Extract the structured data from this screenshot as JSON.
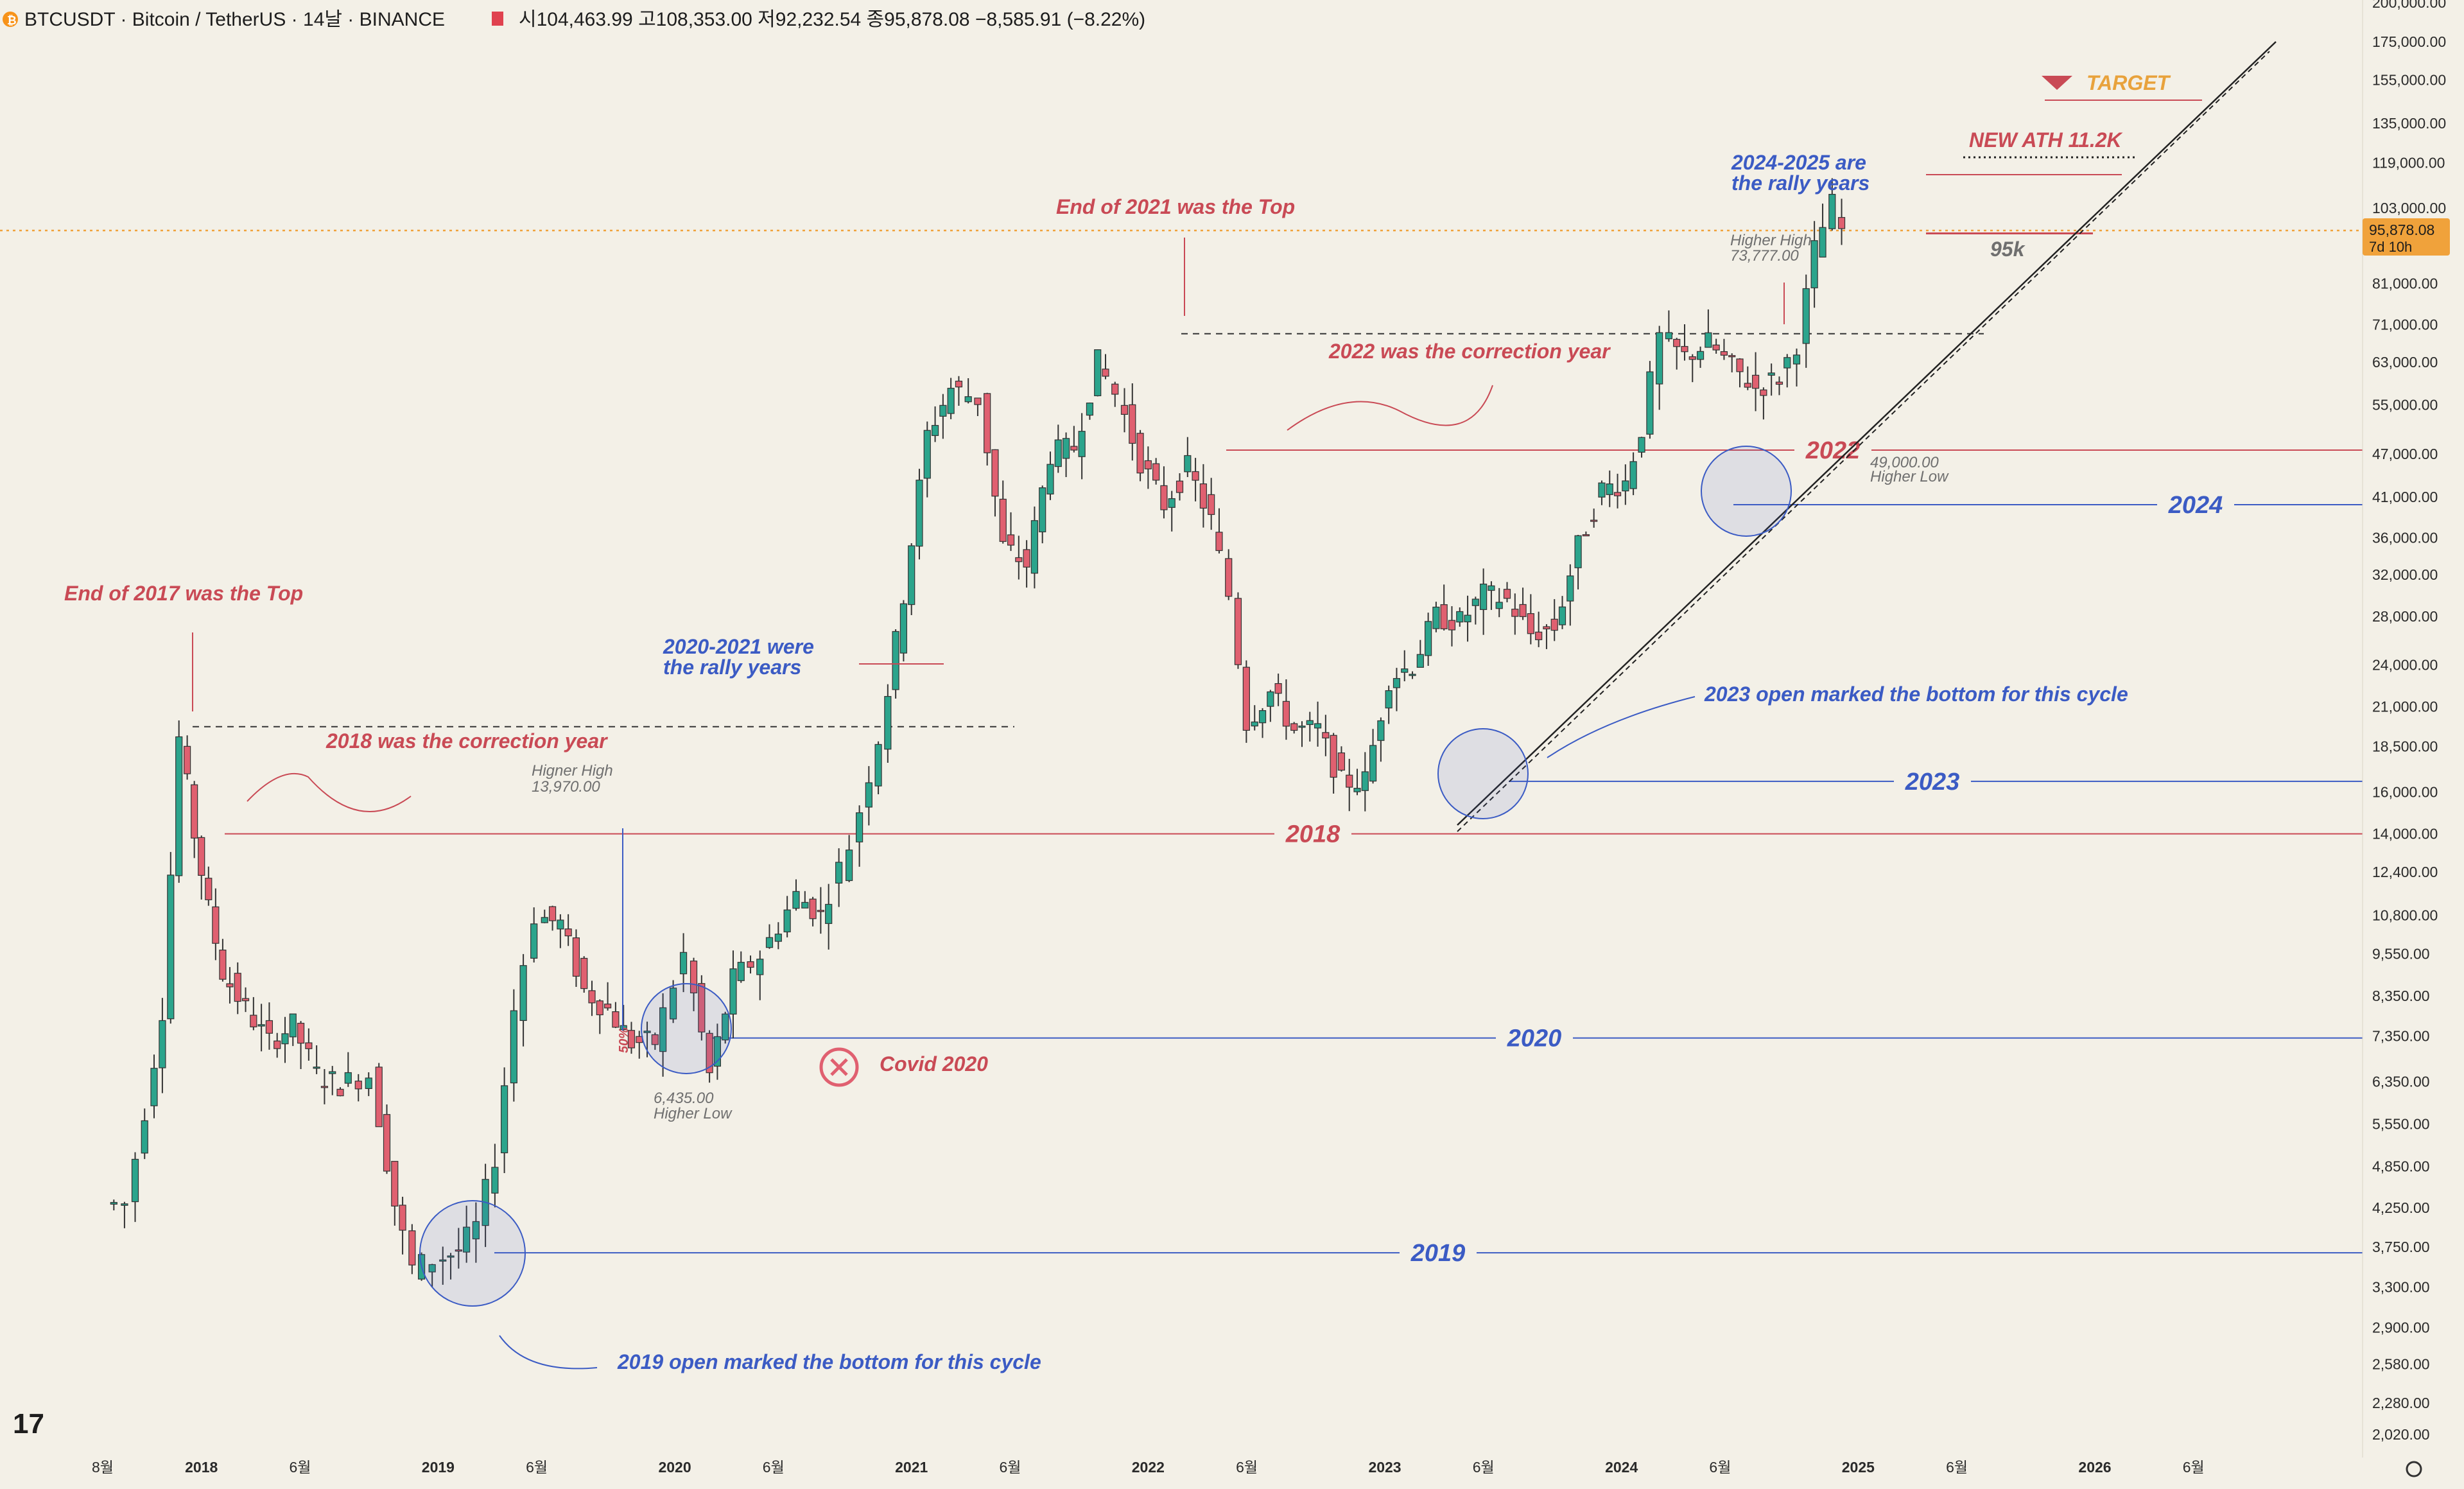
{
  "header": {
    "symbol": "BTCUSDT · Bitcoin / TetherUS · 14날 · BINANCE",
    "ohlc": "시104,463.99  고108,353.00  저92,232.54  종95,878.08  −8,585.91 (−8.22%)"
  },
  "price_tag": {
    "price": "95,878.08",
    "countdown": "7d 10h"
  },
  "colors": {
    "up": "#2ba48c",
    "down": "#e06070",
    "red_annotation": "#c94a55",
    "blue_annotation": "#3b5bc4",
    "price_line": "#f0a23b",
    "background": "#f3f0e7"
  },
  "chart_data": {
    "type": "candlestick",
    "yscale": "log",
    "ylim": [
      2020,
      200000
    ],
    "y_ticks": [
      200000,
      175000,
      155000,
      135000,
      119000,
      103000,
      81000,
      71000,
      63000,
      55000,
      47000,
      41000,
      36000,
      32000,
      28000,
      24000,
      21000,
      18500,
      16000,
      14000,
      12400,
      10800,
      9550,
      8350,
      7350,
      6350,
      5550,
      4850,
      4250,
      3750,
      3300,
      2900,
      2580,
      2280,
      2020
    ],
    "y_tick_labels": [
      "200,000.00",
      "175,000.00",
      "155,000.00",
      "135,000.00",
      "119,000.00",
      "103,000.00",
      "81,000.00",
      "71,000.00",
      "63,000.00",
      "55,000.00",
      "47,000.00",
      "41,000.00",
      "36,000.00",
      "32,000.00",
      "28,000.00",
      "24,000.00",
      "21,000.00",
      "18,500.00",
      "16,000.00",
      "14,000.00",
      "12,400.00",
      "10,800.00",
      "9,550.00",
      "8,350.00",
      "7,350.00",
      "6,350.00",
      "5,550.00",
      "4,850.00",
      "4,250.00",
      "3,750.00",
      "3,300.00",
      "2,900.00",
      "2,580.00",
      "2,280.00",
      "2,020.00"
    ],
    "x_ticks": [
      {
        "t": 2017.583,
        "label": "8월"
      },
      {
        "t": 2018.0,
        "label": "2018",
        "major": true
      },
      {
        "t": 2018.417,
        "label": "6월"
      },
      {
        "t": 2019.0,
        "label": "2019",
        "major": true
      },
      {
        "t": 2019.417,
        "label": "6월"
      },
      {
        "t": 2020.0,
        "label": "2020",
        "major": true
      },
      {
        "t": 2020.417,
        "label": "6월"
      },
      {
        "t": 2021.0,
        "label": "2021",
        "major": true
      },
      {
        "t": 2021.417,
        "label": "6월"
      },
      {
        "t": 2022.0,
        "label": "2022",
        "major": true
      },
      {
        "t": 2022.417,
        "label": "6월"
      },
      {
        "t": 2023.0,
        "label": "2023",
        "major": true
      },
      {
        "t": 2023.417,
        "label": "6월"
      },
      {
        "t": 2024.0,
        "label": "2024",
        "major": true
      },
      {
        "t": 2024.417,
        "label": "6월"
      },
      {
        "t": 2025.0,
        "label": "2025",
        "major": true
      },
      {
        "t": 2025.417,
        "label": "6월"
      },
      {
        "t": 2026.0,
        "label": "2026",
        "major": true
      },
      {
        "t": 2026.417,
        "label": "6월"
      }
    ],
    "xlim": [
      2017.27,
      2026.63
    ],
    "series": [
      {
        "t": 2017.63,
        "v": 4300
      },
      {
        "t": 2017.72,
        "v": 4300
      },
      {
        "t": 2017.8,
        "v": 5800
      },
      {
        "t": 2017.87,
        "v": 8000
      },
      {
        "t": 2017.94,
        "v": 19000
      },
      {
        "t": 2018.0,
        "v": 14000
      },
      {
        "t": 2018.06,
        "v": 11000
      },
      {
        "t": 2018.12,
        "v": 9000
      },
      {
        "t": 2018.22,
        "v": 8000
      },
      {
        "t": 2018.32,
        "v": 7200
      },
      {
        "t": 2018.42,
        "v": 7600
      },
      {
        "t": 2018.52,
        "v": 6500
      },
      {
        "t": 2018.62,
        "v": 6300
      },
      {
        "t": 2018.75,
        "v": 6500
      },
      {
        "t": 2018.85,
        "v": 4300
      },
      {
        "t": 2018.93,
        "v": 3500
      },
      {
        "t": 2019.02,
        "v": 3600
      },
      {
        "t": 2019.12,
        "v": 3700
      },
      {
        "t": 2019.2,
        "v": 4000
      },
      {
        "t": 2019.28,
        "v": 5000
      },
      {
        "t": 2019.36,
        "v": 8000
      },
      {
        "t": 2019.45,
        "v": 10800
      },
      {
        "t": 2019.55,
        "v": 10500
      },
      {
        "t": 2019.65,
        "v": 8500
      },
      {
        "t": 2019.75,
        "v": 8000
      },
      {
        "t": 2019.85,
        "v": 7200
      },
      {
        "t": 2019.95,
        "v": 7200
      },
      {
        "t": 2020.08,
        "v": 9500
      },
      {
        "t": 2020.18,
        "v": 6500
      },
      {
        "t": 2020.28,
        "v": 8800
      },
      {
        "t": 2020.4,
        "v": 9500
      },
      {
        "t": 2020.55,
        "v": 11500
      },
      {
        "t": 2020.65,
        "v": 10800
      },
      {
        "t": 2020.78,
        "v": 13500
      },
      {
        "t": 2020.9,
        "v": 19000
      },
      {
        "t": 2021.0,
        "v": 30000
      },
      {
        "t": 2021.1,
        "v": 50000
      },
      {
        "t": 2021.2,
        "v": 58000
      },
      {
        "t": 2021.32,
        "v": 56000
      },
      {
        "t": 2021.42,
        "v": 35000
      },
      {
        "t": 2021.52,
        "v": 33000
      },
      {
        "t": 2021.62,
        "v": 47000
      },
      {
        "t": 2021.72,
        "v": 48000
      },
      {
        "t": 2021.82,
        "v": 63000
      },
      {
        "t": 2021.9,
        "v": 57000
      },
      {
        "t": 2022.0,
        "v": 46000
      },
      {
        "t": 2022.1,
        "v": 40000
      },
      {
        "t": 2022.2,
        "v": 45000
      },
      {
        "t": 2022.3,
        "v": 38000
      },
      {
        "t": 2022.38,
        "v": 30000
      },
      {
        "t": 2022.45,
        "v": 20000
      },
      {
        "t": 2022.55,
        "v": 22000
      },
      {
        "t": 2022.65,
        "v": 19500
      },
      {
        "t": 2022.75,
        "v": 19500
      },
      {
        "t": 2022.85,
        "v": 16500
      },
      {
        "t": 2022.95,
        "v": 16600
      },
      {
        "t": 2023.05,
        "v": 23000
      },
      {
        "t": 2023.15,
        "v": 24000
      },
      {
        "t": 2023.25,
        "v": 28000
      },
      {
        "t": 2023.35,
        "v": 27500
      },
      {
        "t": 2023.45,
        "v": 30000
      },
      {
        "t": 2023.55,
        "v": 29500
      },
      {
        "t": 2023.65,
        "v": 26500
      },
      {
        "t": 2023.75,
        "v": 27000
      },
      {
        "t": 2023.85,
        "v": 35000
      },
      {
        "t": 2023.95,
        "v": 42000
      },
      {
        "t": 2024.05,
        "v": 43000
      },
      {
        "t": 2024.12,
        "v": 51000
      },
      {
        "t": 2024.2,
        "v": 68000
      },
      {
        "t": 2024.3,
        "v": 64000
      },
      {
        "t": 2024.4,
        "v": 67000
      },
      {
        "t": 2024.5,
        "v": 62000
      },
      {
        "t": 2024.6,
        "v": 58000
      },
      {
        "t": 2024.7,
        "v": 60000
      },
      {
        "t": 2024.78,
        "v": 67000
      },
      {
        "t": 2024.85,
        "v": 90000
      },
      {
        "t": 2024.93,
        "v": 104000
      },
      {
        "t": 2024.97,
        "v": 95878
      }
    ],
    "annotations": [
      {
        "text": "End of 2017 was the Top",
        "color": "red"
      },
      {
        "text": "2018 was the correction year",
        "color": "red"
      },
      {
        "text": "Higner High",
        "color": "gray"
      },
      {
        "text": "13,970.00",
        "color": "gray"
      },
      {
        "text": "2019 open marked the bottom for this cycle",
        "color": "blue"
      },
      {
        "text": "6,435.00",
        "color": "gray"
      },
      {
        "text": "Higher Low",
        "color": "gray"
      },
      {
        "text": "50%",
        "color": "red"
      },
      {
        "text": "Covid 2020",
        "color": "red"
      },
      {
        "text": "2020-2021 were",
        "color": "blue"
      },
      {
        "text": "the rally years",
        "color": "blue"
      },
      {
        "text": "End of 2021 was the Top",
        "color": "red"
      },
      {
        "text": "2022 was the correction year",
        "color": "red"
      },
      {
        "text": "2023 open marked the bottom for this cycle",
        "color": "blue"
      },
      {
        "text": "Higher High",
        "color": "gray"
      },
      {
        "text": "73,777.00",
        "color": "gray"
      },
      {
        "text": "49,000.00",
        "color": "gray"
      },
      {
        "text": "Higher Low",
        "color": "gray"
      },
      {
        "text": "2024-2025 are",
        "color": "blue"
      },
      {
        "text": "the rally years",
        "color": "blue"
      },
      {
        "text": "NEW ATH 11.2K",
        "color": "red"
      },
      {
        "text": "TARGET",
        "color": "orange"
      },
      {
        "text": "95k",
        "color": "gray"
      }
    ],
    "levels": [
      {
        "label": "2018",
        "price": 14000,
        "color": "red"
      },
      {
        "label": "2019",
        "price": 3680,
        "color": "blue"
      },
      {
        "label": "2020",
        "price": 7300,
        "color": "blue"
      },
      {
        "label": "2022",
        "price": 47600,
        "color": "red"
      },
      {
        "label": "2023",
        "price": 16550,
        "color": "blue"
      },
      {
        "label": "2024",
        "price": 40000,
        "color": "blue"
      }
    ],
    "current_price": 95878.08,
    "grid": false
  }
}
